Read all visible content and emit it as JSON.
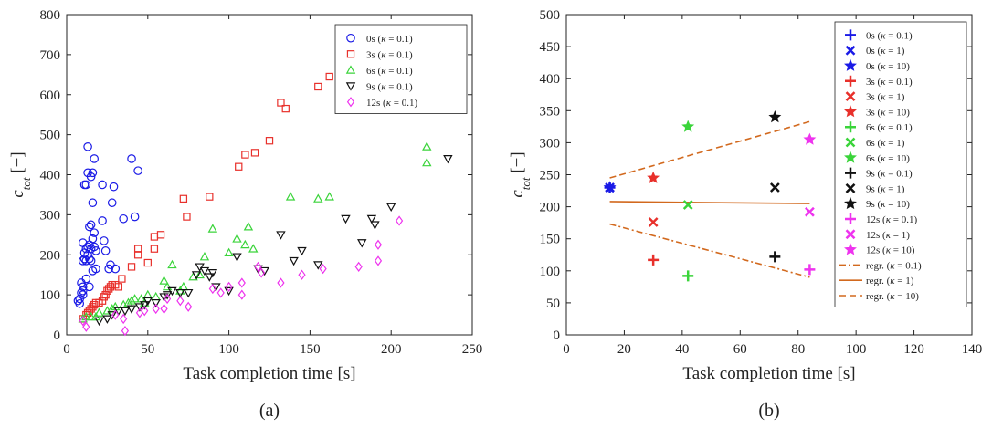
{
  "colors": {
    "red": "#e8302b",
    "blue": "#1a1ae6",
    "green": "#3ad43a",
    "black": "#111111",
    "magenta": "#ee33ee",
    "regr": "#d2691e"
  },
  "chart_data": [
    {
      "panel": "(a)",
      "type": "scatter",
      "xlabel": "Task completion time [s]",
      "ylabel": "c_tot [−]",
      "xlim": [
        0,
        250
      ],
      "ylim": [
        0,
        800
      ],
      "xticks": [
        "0",
        "50",
        "100",
        "150",
        "200",
        "250"
      ],
      "yticks": [
        "0",
        "100",
        "200",
        "300",
        "400",
        "500",
        "600",
        "700",
        "800"
      ],
      "grid": false,
      "legend_position": "top-right",
      "series": [
        {
          "name": "0s (κ = 0.1)",
          "marker": "circle",
          "color": "blue",
          "points": [
            [
              7,
              85
            ],
            [
              8,
              90
            ],
            [
              8,
              78
            ],
            [
              9,
              130
            ],
            [
              9,
              105
            ],
            [
              10,
              100
            ],
            [
              10,
              110
            ],
            [
              10,
              120
            ],
            [
              10,
              185
            ],
            [
              10,
              230
            ],
            [
              11,
              190
            ],
            [
              11,
              205
            ],
            [
              11,
              375
            ],
            [
              12,
              375
            ],
            [
              12,
              185
            ],
            [
              12,
              215
            ],
            [
              12,
              140
            ],
            [
              13,
              220
            ],
            [
              13,
              200
            ],
            [
              13,
              405
            ],
            [
              13,
              470
            ],
            [
              14,
              225
            ],
            [
              14,
              270
            ],
            [
              14,
              190
            ],
            [
              14,
              120
            ],
            [
              15,
              275
            ],
            [
              15,
              395
            ],
            [
              15,
              215
            ],
            [
              15,
              185
            ],
            [
              16,
              160
            ],
            [
              16,
              330
            ],
            [
              16,
              405
            ],
            [
              16,
              240
            ],
            [
              17,
              255
            ],
            [
              17,
              220
            ],
            [
              17,
              440
            ],
            [
              18,
              210
            ],
            [
              18,
              165
            ],
            [
              22,
              375
            ],
            [
              22,
              285
            ],
            [
              23,
              235
            ],
            [
              24,
              210
            ],
            [
              26,
              165
            ],
            [
              27,
              175
            ],
            [
              28,
              330
            ],
            [
              29,
              370
            ],
            [
              30,
              165
            ],
            [
              35,
              290
            ],
            [
              40,
              440
            ],
            [
              42,
              295
            ],
            [
              44,
              410
            ]
          ]
        },
        {
          "name": "3s (κ = 0.1)",
          "marker": "square",
          "color": "red",
          "points": [
            [
              10,
              40
            ],
            [
              12,
              50
            ],
            [
              13,
              55
            ],
            [
              14,
              60
            ],
            [
              15,
              65
            ],
            [
              16,
              70
            ],
            [
              17,
              75
            ],
            [
              18,
              80
            ],
            [
              20,
              80
            ],
            [
              22,
              85
            ],
            [
              23,
              95
            ],
            [
              24,
              100
            ],
            [
              25,
              110
            ],
            [
              26,
              115
            ],
            [
              27,
              120
            ],
            [
              28,
              125
            ],
            [
              30,
              125
            ],
            [
              32,
              120
            ],
            [
              34,
              140
            ],
            [
              40,
              170
            ],
            [
              44,
              200
            ],
            [
              44,
              215
            ],
            [
              50,
              180
            ],
            [
              54,
              215
            ],
            [
              54,
              245
            ],
            [
              58,
              250
            ],
            [
              72,
              340
            ],
            [
              74,
              295
            ],
            [
              88,
              345
            ],
            [
              106,
              420
            ],
            [
              110,
              450
            ],
            [
              116,
              455
            ],
            [
              125,
              485
            ],
            [
              132,
              580
            ],
            [
              135,
              565
            ],
            [
              155,
              620
            ],
            [
              162,
              645
            ]
          ]
        },
        {
          "name": "6s (κ = 0.1)",
          "marker": "triangle-up",
          "color": "green",
          "points": [
            [
              10,
              40
            ],
            [
              12,
              45
            ],
            [
              15,
              45
            ],
            [
              18,
              45
            ],
            [
              20,
              55
            ],
            [
              25,
              60
            ],
            [
              28,
              65
            ],
            [
              30,
              70
            ],
            [
              35,
              75
            ],
            [
              38,
              80
            ],
            [
              40,
              85
            ],
            [
              42,
              90
            ],
            [
              46,
              90
            ],
            [
              48,
              80
            ],
            [
              50,
              100
            ],
            [
              55,
              95
            ],
            [
              60,
              135
            ],
            [
              62,
              120
            ],
            [
              65,
              175
            ],
            [
              70,
              110
            ],
            [
              72,
              120
            ],
            [
              78,
              145
            ],
            [
              82,
              150
            ],
            [
              85,
              195
            ],
            [
              90,
              265
            ],
            [
              100,
              205
            ],
            [
              105,
              240
            ],
            [
              110,
              225
            ],
            [
              112,
              270
            ],
            [
              115,
              215
            ],
            [
              138,
              345
            ],
            [
              155,
              340
            ],
            [
              162,
              345
            ],
            [
              222,
              430
            ],
            [
              222,
              470
            ]
          ]
        },
        {
          "name": "9s (κ = 0.1)",
          "marker": "triangle-down",
          "color": "black",
          "points": [
            [
              20,
              35
            ],
            [
              25,
              40
            ],
            [
              28,
              50
            ],
            [
              32,
              60
            ],
            [
              36,
              60
            ],
            [
              40,
              65
            ],
            [
              45,
              70
            ],
            [
              48,
              75
            ],
            [
              50,
              85
            ],
            [
              55,
              80
            ],
            [
              60,
              95
            ],
            [
              62,
              100
            ],
            [
              65,
              110
            ],
            [
              70,
              105
            ],
            [
              75,
              105
            ],
            [
              80,
              150
            ],
            [
              82,
              170
            ],
            [
              85,
              160
            ],
            [
              88,
              145
            ],
            [
              90,
              155
            ],
            [
              92,
              120
            ],
            [
              100,
              110
            ],
            [
              105,
              195
            ],
            [
              118,
              165
            ],
            [
              122,
              160
            ],
            [
              132,
              250
            ],
            [
              140,
              185
            ],
            [
              145,
              210
            ],
            [
              155,
              175
            ],
            [
              172,
              290
            ],
            [
              182,
              230
            ],
            [
              188,
              290
            ],
            [
              190,
              275
            ],
            [
              200,
              320
            ],
            [
              235,
              440
            ]
          ]
        },
        {
          "name": "12s (κ = 0.1)",
          "marker": "diamond",
          "color": "magenta",
          "points": [
            [
              10,
              35
            ],
            [
              12,
              20
            ],
            [
              30,
              50
            ],
            [
              35,
              40
            ],
            [
              36,
              10
            ],
            [
              45,
              55
            ],
            [
              48,
              60
            ],
            [
              55,
              65
            ],
            [
              60,
              65
            ],
            [
              62,
              90
            ],
            [
              70,
              85
            ],
            [
              75,
              70
            ],
            [
              90,
              115
            ],
            [
              95,
              105
            ],
            [
              100,
              120
            ],
            [
              108,
              130
            ],
            [
              108,
              100
            ],
            [
              118,
              170
            ],
            [
              120,
              155
            ],
            [
              132,
              130
            ],
            [
              145,
              150
            ],
            [
              158,
              165
            ],
            [
              180,
              170
            ],
            [
              192,
              185
            ],
            [
              192,
              225
            ],
            [
              205,
              285
            ]
          ]
        }
      ]
    },
    {
      "panel": "(b)",
      "type": "scatter",
      "xlabel": "Task completion time [s]",
      "ylabel": "c_tot [−]",
      "xlim": [
        0,
        140
      ],
      "ylim": [
        0,
        500
      ],
      "xticks": [
        "0",
        "20",
        "40",
        "60",
        "80",
        "100",
        "120",
        "140"
      ],
      "yticks": [
        "0",
        "50",
        "100",
        "150",
        "200",
        "250",
        "300",
        "350",
        "400",
        "450",
        "500"
      ],
      "grid": false,
      "legend_position": "top-right",
      "series": [
        {
          "name": "0s (κ = 0.1)",
          "marker": "plus",
          "color": "blue",
          "points": [
            [
              15,
              230
            ]
          ]
        },
        {
          "name": "0s (κ = 1)",
          "marker": "cross",
          "color": "blue",
          "points": [
            [
              15,
              230
            ]
          ]
        },
        {
          "name": "0s (κ = 10)",
          "marker": "star",
          "color": "blue",
          "points": [
            [
              15,
              230
            ]
          ]
        },
        {
          "name": "3s (κ = 0.1)",
          "marker": "plus",
          "color": "red",
          "points": [
            [
              30,
              117
            ]
          ]
        },
        {
          "name": "3s (κ = 1)",
          "marker": "cross",
          "color": "red",
          "points": [
            [
              30,
              176
            ]
          ]
        },
        {
          "name": "3s (κ = 10)",
          "marker": "star",
          "color": "red",
          "points": [
            [
              30,
              245
            ]
          ]
        },
        {
          "name": "6s (κ = 0.1)",
          "marker": "plus",
          "color": "green",
          "points": [
            [
              42,
              92
            ]
          ]
        },
        {
          "name": "6s (κ = 1)",
          "marker": "cross",
          "color": "green",
          "points": [
            [
              42,
              203
            ]
          ]
        },
        {
          "name": "6s (κ = 10)",
          "marker": "star",
          "color": "green",
          "points": [
            [
              42,
              325
            ]
          ]
        },
        {
          "name": "9s (κ = 0.1)",
          "marker": "plus",
          "color": "black",
          "points": [
            [
              72,
              122
            ]
          ]
        },
        {
          "name": "9s (κ = 1)",
          "marker": "cross",
          "color": "black",
          "points": [
            [
              72,
              230
            ]
          ]
        },
        {
          "name": "9s (κ = 10)",
          "marker": "star",
          "color": "black",
          "points": [
            [
              72,
              340
            ]
          ]
        },
        {
          "name": "12s (κ = 0.1)",
          "marker": "plus",
          "color": "magenta",
          "points": [
            [
              84,
              102
            ]
          ]
        },
        {
          "name": "12s (κ = 1)",
          "marker": "cross",
          "color": "magenta",
          "points": [
            [
              84,
              192
            ]
          ]
        },
        {
          "name": "12s (κ = 10)",
          "marker": "star",
          "color": "magenta",
          "points": [
            [
              84,
              305
            ]
          ]
        }
      ],
      "regression_lines": [
        {
          "name": "regr. (κ = 0.1)",
          "style": "dashdot",
          "color": "regr",
          "points": [
            [
              15,
              173
            ],
            [
              84,
              90
            ]
          ]
        },
        {
          "name": "regr. (κ = 1)",
          "style": "solid",
          "color": "regr",
          "points": [
            [
              15,
              208
            ],
            [
              84,
              205
            ]
          ]
        },
        {
          "name": "regr. (κ = 10)",
          "style": "dashed",
          "color": "regr",
          "points": [
            [
              15,
              245
            ],
            [
              84,
              333
            ]
          ]
        }
      ]
    }
  ]
}
